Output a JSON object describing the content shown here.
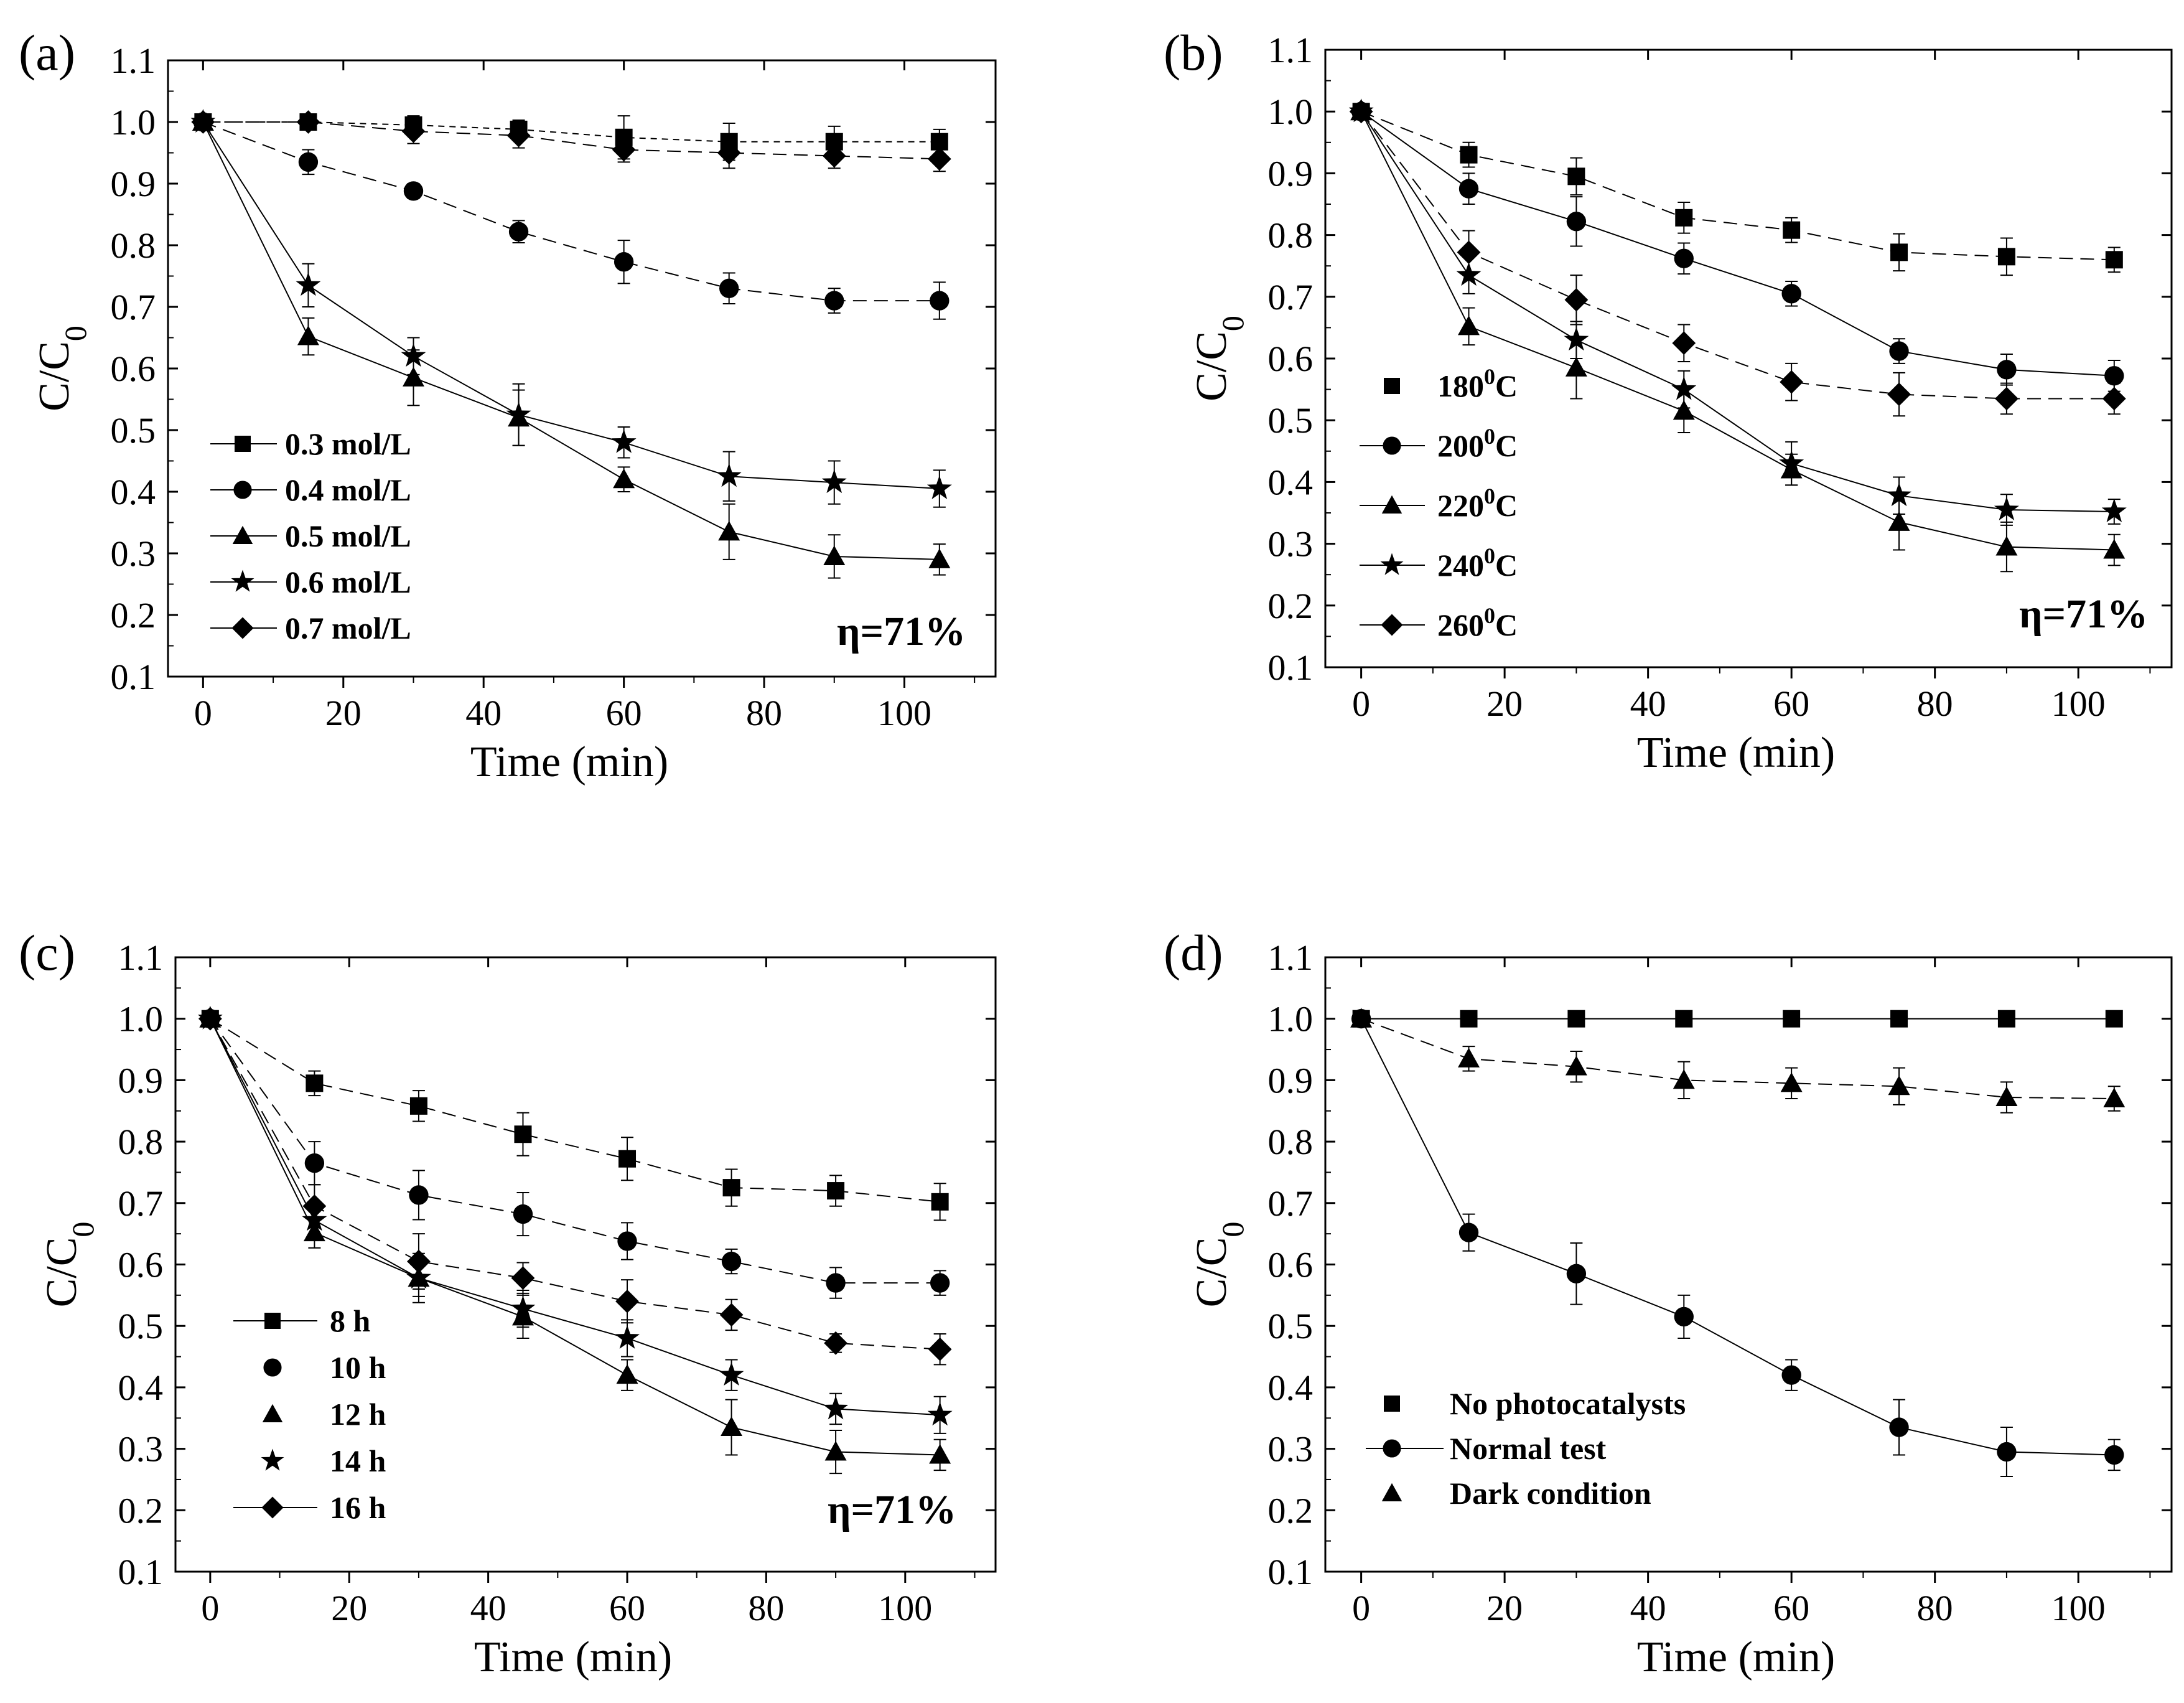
{
  "figure": {
    "chart_data": [
      {
        "type": "line",
        "panel_label": "(a)",
        "xlabel": "Time (min)",
        "ylabel": "C/C",
        "ylabel_sub": "0",
        "xlim": [
          -5,
          113
        ],
        "ylim": [
          0.1,
          1.1
        ],
        "xticks": [
          "0",
          "20",
          "40",
          "60",
          "80",
          "100"
        ],
        "yticks": [
          "0.1",
          "0.2",
          "0.3",
          "0.4",
          "0.5",
          "0.6",
          "0.7",
          "0.8",
          "0.9",
          "1.0",
          "1.1"
        ],
        "annotation": "η=71%",
        "legend_position": "lower-left",
        "x": [
          0,
          15,
          30,
          45,
          60,
          75,
          90,
          105
        ],
        "series": [
          {
            "name": "0.3 mol/L",
            "marker": "square",
            "dash": "short",
            "values": [
              1.0,
              1.0,
              0.995,
              0.988,
              0.975,
              0.968,
              0.968,
              0.968
            ],
            "errors": [
              0,
              0.01,
              0.015,
              0.015,
              0.035,
              0.03,
              0.025,
              0.02
            ]
          },
          {
            "name": "0.4 mol/L",
            "marker": "circle",
            "dash": "dash",
            "values": [
              1.0,
              0.935,
              0.888,
              0.822,
              0.773,
              0.73,
              0.71,
              0.71
            ],
            "errors": [
              0,
              0.02,
              0.012,
              0.018,
              0.035,
              0.025,
              0.02,
              0.03
            ]
          },
          {
            "name": "0.5 mol/L",
            "marker": "triangle",
            "dash": "solid",
            "values": [
              1.0,
              0.652,
              0.585,
              0.52,
              0.42,
              0.335,
              0.295,
              0.29
            ],
            "errors": [
              0,
              0.03,
              0.045,
              0.045,
              0.02,
              0.045,
              0.035,
              0.025
            ]
          },
          {
            "name": "0.6 mol/L",
            "marker": "star",
            "dash": "solid",
            "values": [
              1.0,
              0.735,
              0.62,
              0.525,
              0.48,
              0.425,
              0.415,
              0.405
            ],
            "errors": [
              0,
              0.035,
              0.03,
              0.05,
              0.025,
              0.04,
              0.035,
              0.03
            ]
          },
          {
            "name": "0.7 mol/L",
            "marker": "diamond",
            "dash": "dash",
            "values": [
              1.0,
              1.0,
              0.985,
              0.978,
              0.955,
              0.95,
              0.945,
              0.94
            ],
            "errors": [
              0,
              0.01,
              0.02,
              0.02,
              0.02,
              0.025,
              0.02,
              0.02
            ]
          }
        ]
      },
      {
        "type": "line",
        "panel_label": "(b)",
        "xlabel": "Time (min)",
        "ylabel": "C/C",
        "ylabel_sub": "0",
        "xlim": [
          -5,
          113
        ],
        "ylim": [
          0.1,
          1.1
        ],
        "xticks": [
          "0",
          "20",
          "40",
          "60",
          "80",
          "100"
        ],
        "yticks": [
          "0.1",
          "0.2",
          "0.3",
          "0.4",
          "0.5",
          "0.6",
          "0.7",
          "0.8",
          "0.9",
          "1.0",
          "1.1"
        ],
        "annotation": "η=71%",
        "legend_position": "lower-left",
        "x": [
          0,
          15,
          30,
          45,
          60,
          75,
          90,
          105
        ],
        "series": [
          {
            "name": "180",
            "name_sup": "0",
            "name_suffix": "C",
            "marker": "square",
            "dash": "dash",
            "values": [
              1.0,
              0.93,
              0.895,
              0.828,
              0.808,
              0.772,
              0.765,
              0.76
            ],
            "errors": [
              0,
              0.02,
              0.03,
              0.025,
              0.02,
              0.03,
              0.03,
              0.02
            ]
          },
          {
            "name": "200",
            "name_sup": "0",
            "name_suffix": "C",
            "marker": "circle",
            "dash": "solid",
            "values": [
              1.0,
              0.875,
              0.822,
              0.762,
              0.705,
              0.612,
              0.582,
              0.572
            ],
            "errors": [
              0,
              0.025,
              0.04,
              0.025,
              0.02,
              0.02,
              0.025,
              0.025
            ]
          },
          {
            "name": "220",
            "name_sup": "0",
            "name_suffix": "C",
            "marker": "triangle",
            "dash": "solid",
            "values": [
              1.0,
              0.652,
              0.585,
              0.515,
              0.42,
              0.335,
              0.295,
              0.29
            ],
            "errors": [
              0,
              0.03,
              0.05,
              0.035,
              0.025,
              0.045,
              0.04,
              0.025
            ]
          },
          {
            "name": "240",
            "name_sup": "0",
            "name_suffix": "C",
            "marker": "star",
            "dash": "solid",
            "values": [
              1.0,
              0.735,
              0.63,
              0.55,
              0.43,
              0.378,
              0.355,
              0.352
            ],
            "errors": [
              0,
              0.03,
              0.03,
              0.03,
              0.035,
              0.03,
              0.025,
              0.02
            ]
          },
          {
            "name": "260",
            "name_sup": "0",
            "name_suffix": "C",
            "marker": "diamond",
            "dash": "dash",
            "values": [
              1.0,
              0.772,
              0.695,
              0.625,
              0.562,
              0.542,
              0.535,
              0.535
            ],
            "errors": [
              0,
              0.035,
              0.04,
              0.03,
              0.03,
              0.035,
              0.025,
              0.025
            ]
          }
        ]
      },
      {
        "type": "line",
        "panel_label": "(c)",
        "xlabel": "Time (min)",
        "ylabel": "C/C",
        "ylabel_sub": "0",
        "xlim": [
          -5,
          113
        ],
        "ylim": [
          0.1,
          1.1
        ],
        "xticks": [
          "0",
          "20",
          "40",
          "60",
          "80",
          "100"
        ],
        "yticks": [
          "0.1",
          "0.2",
          "0.3",
          "0.4",
          "0.5",
          "0.6",
          "0.7",
          "0.8",
          "0.9",
          "1.0",
          "1.1"
        ],
        "annotation": "η=71%",
        "legend_position": "lower-left",
        "x": [
          0,
          15,
          30,
          45,
          60,
          75,
          90,
          105
        ],
        "series": [
          {
            "name": "8 h",
            "marker": "square",
            "dash": "dash",
            "values": [
              1.0,
              0.895,
              0.858,
              0.812,
              0.772,
              0.725,
              0.72,
              0.702
            ],
            "errors": [
              0,
              0.02,
              0.025,
              0.035,
              0.035,
              0.03,
              0.025,
              0.03
            ]
          },
          {
            "name": "10 h",
            "marker": "circle",
            "dash": "dash",
            "values": [
              1.0,
              0.765,
              0.713,
              0.682,
              0.638,
              0.605,
              0.57,
              0.57
            ],
            "errors": [
              0,
              0.035,
              0.04,
              0.035,
              0.03,
              0.02,
              0.025,
              0.02
            ]
          },
          {
            "name": "12 h",
            "marker": "triangle",
            "dash": "solid",
            "values": [
              1.0,
              0.652,
              0.578,
              0.515,
              0.42,
              0.335,
              0.295,
              0.29
            ],
            "errors": [
              0,
              0.025,
              0.04,
              0.035,
              0.025,
              0.045,
              0.035,
              0.025
            ]
          },
          {
            "name": "14 h",
            "marker": "star",
            "dash": "solid",
            "values": [
              1.0,
              0.672,
              0.578,
              0.528,
              0.48,
              0.42,
              0.365,
              0.355
            ],
            "errors": [
              0,
              0.03,
              0.03,
              0.03,
              0.03,
              0.025,
              0.025,
              0.03
            ]
          },
          {
            "name": "16 h",
            "marker": "diamond",
            "dash": "dash",
            "values": [
              1.0,
              0.695,
              0.605,
              0.578,
              0.54,
              0.518,
              0.472,
              0.462
            ],
            "errors": [
              0,
              0.035,
              0.045,
              0.025,
              0.035,
              0.025,
              0.015,
              0.025
            ]
          }
        ]
      },
      {
        "type": "line",
        "panel_label": "(d)",
        "xlabel": "Time (min)",
        "ylabel": "C/C",
        "ylabel_sub": "0",
        "xlim": [
          -5,
          113
        ],
        "ylim": [
          0.1,
          1.1
        ],
        "xticks": [
          "0",
          "20",
          "40",
          "60",
          "80",
          "100"
        ],
        "yticks": [
          "0.1",
          "0.2",
          "0.3",
          "0.4",
          "0.5",
          "0.6",
          "0.7",
          "0.8",
          "0.9",
          "1.0",
          "1.1"
        ],
        "annotation": "",
        "legend_position": "lower-left",
        "x": [
          0,
          15,
          30,
          45,
          60,
          75,
          90,
          105
        ],
        "series": [
          {
            "name": "No photocatalysts",
            "marker": "square",
            "dash": "solid",
            "values": [
              1.0,
              1.0,
              1.0,
              1.0,
              1.0,
              1.0,
              1.0,
              1.0
            ],
            "errors": [
              0,
              0,
              0,
              0,
              0,
              0,
              0,
              0
            ]
          },
          {
            "name": "Normal test",
            "marker": "circle",
            "dash": "solid",
            "values": [
              1.0,
              0.652,
              0.585,
              0.515,
              0.42,
              0.335,
              0.295,
              0.29
            ],
            "errors": [
              0,
              0.03,
              0.05,
              0.035,
              0.025,
              0.045,
              0.04,
              0.025
            ]
          },
          {
            "name": "Dark condition",
            "marker": "triangle",
            "dash": "dash",
            "values": [
              1.0,
              0.935,
              0.922,
              0.9,
              0.895,
              0.89,
              0.872,
              0.87
            ],
            "errors": [
              0,
              0.02,
              0.025,
              0.03,
              0.025,
              0.03,
              0.025,
              0.02
            ]
          }
        ]
      }
    ]
  }
}
